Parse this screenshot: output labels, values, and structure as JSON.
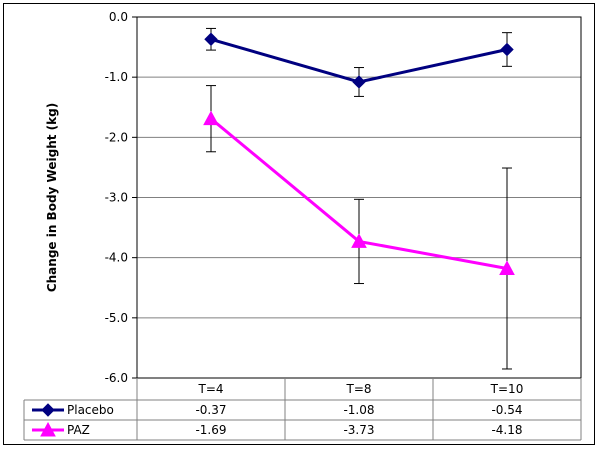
{
  "chart_data": {
    "type": "line",
    "title": "",
    "xlabel": "",
    "ylabel": "Change in Body Weight  (kg)",
    "categories": [
      "T=4",
      "T=8",
      "T=10"
    ],
    "ylim": [
      -6.0,
      0.0
    ],
    "yticks": [
      "0.0",
      "-1.0",
      "-2.0",
      "-3.0",
      "-4.0",
      "-5.0",
      "-6.0"
    ],
    "grid": true,
    "legend": "data-table-below",
    "series": [
      {
        "name": "Placebo",
        "color": "#000080",
        "marker": "diamond",
        "values": [
          -0.37,
          -1.08,
          -0.54
        ],
        "labels": [
          "-0.37",
          "-1.08",
          "-0.54"
        ],
        "err_low": [
          -0.55,
          -1.32,
          -0.82
        ],
        "err_high": [
          -0.19,
          -0.84,
          -0.26
        ]
      },
      {
        "name": "PAZ",
        "color": "#ff00ff",
        "marker": "triangle",
        "values": [
          -1.69,
          -3.73,
          -4.18
        ],
        "labels": [
          "-1.69",
          "-3.73",
          "-4.18"
        ],
        "err_low": [
          -2.24,
          -4.43,
          -5.85
        ],
        "err_high": [
          -1.14,
          -3.03,
          -2.51
        ]
      }
    ]
  }
}
